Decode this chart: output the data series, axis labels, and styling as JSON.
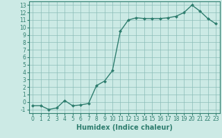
{
  "x": [
    0,
    1,
    2,
    3,
    4,
    5,
    6,
    7,
    8,
    9,
    10,
    11,
    12,
    13,
    14,
    15,
    16,
    17,
    18,
    19,
    20,
    21,
    22,
    23
  ],
  "y": [
    -0.5,
    -0.5,
    -1.0,
    -0.8,
    0.2,
    -0.5,
    -0.4,
    -0.2,
    2.2,
    2.8,
    4.2,
    9.5,
    11.0,
    11.3,
    11.2,
    11.2,
    11.2,
    11.3,
    11.5,
    12.0,
    13.0,
    12.2,
    11.2,
    10.5
  ],
  "line_color": "#2e7d6e",
  "marker": "D",
  "marker_size": 2,
  "bg_color": "#cceae5",
  "grid_color": "#8bbdb8",
  "xlabel": "Humidex (Indice chaleur)",
  "xlim": [
    -0.5,
    23.5
  ],
  "ylim": [
    -1.5,
    13.5
  ],
  "xticks": [
    0,
    1,
    2,
    3,
    4,
    5,
    6,
    7,
    8,
    9,
    10,
    11,
    12,
    13,
    14,
    15,
    16,
    17,
    18,
    19,
    20,
    21,
    22,
    23
  ],
  "yticks": [
    -1,
    0,
    1,
    2,
    3,
    4,
    5,
    6,
    7,
    8,
    9,
    10,
    11,
    12,
    13
  ],
  "tick_label_size": 5.5,
  "xlabel_size": 7,
  "line_width": 1.0
}
